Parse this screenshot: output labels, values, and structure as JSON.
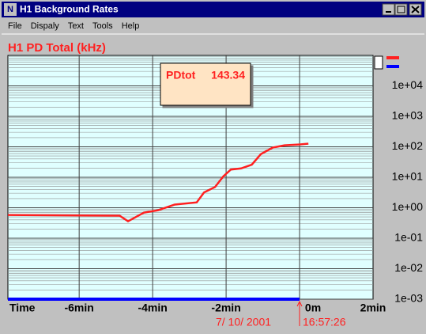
{
  "window": {
    "title": "H1 Background Rates",
    "menu": [
      "File",
      "Dispaly",
      "Text",
      "Tools",
      "Help"
    ]
  },
  "chart_data": {
    "type": "line",
    "title": "H1 PD Total  (kHz)",
    "x_label": "Time",
    "xlim": [
      -7.94,
      2
    ],
    "xticks": [
      {
        "value": -6,
        "label": "-6min"
      },
      {
        "value": -4,
        "label": "-4min"
      },
      {
        "value": -2,
        "label": "-2min"
      },
      {
        "value": 0,
        "label": "0m"
      },
      {
        "value": 2,
        "label": "2min"
      }
    ],
    "ylim": [
      0.001,
      100000
    ],
    "log_y": true,
    "grid": true,
    "minor_grid": true,
    "yticks": [
      {
        "value": 10000,
        "label": "1e+04"
      },
      {
        "value": 1000,
        "label": "1e+03"
      },
      {
        "value": 100,
        "label": "1e+02"
      },
      {
        "value": 10,
        "label": "1e+01"
      },
      {
        "value": 1,
        "label": "1e+00"
      },
      {
        "value": 0.1,
        "label": "1e-01"
      },
      {
        "value": 0.01,
        "label": "1e-02"
      },
      {
        "value": 0.001,
        "label": "1e-03"
      }
    ],
    "series": [
      {
        "name": "PDtot",
        "color": "#ff2020",
        "x": [
          -7.94,
          -4.9,
          -4.67,
          -4.24,
          -3.85,
          -3.4,
          -2.8,
          -2.6,
          -2.3,
          -2.08,
          -1.87,
          -1.59,
          -1.3,
          -1.05,
          -0.73,
          -0.41,
          0.02,
          0.24
        ],
        "values": [
          0.58,
          0.55,
          0.36,
          0.69,
          0.83,
          1.27,
          1.5,
          3.2,
          4.8,
          10.6,
          18,
          19.5,
          26,
          58,
          94,
          112,
          120,
          127
        ]
      }
    ],
    "readout": {
      "label": "PDtot",
      "value": 143.34
    },
    "annotations": [
      "7/ 10/ 2001",
      "16:57:26"
    ]
  }
}
